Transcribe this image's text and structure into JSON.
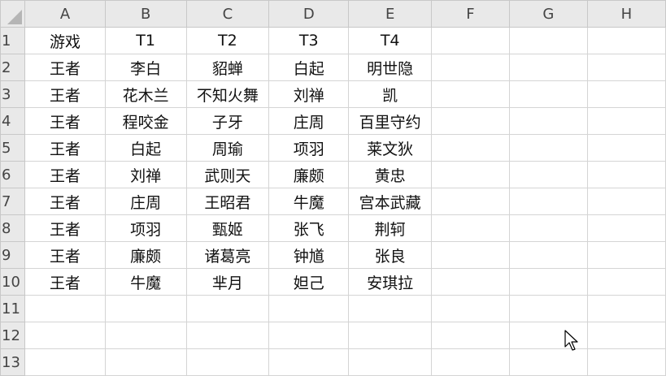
{
  "columns": [
    "A",
    "B",
    "C",
    "D",
    "E",
    "F",
    "G",
    "H"
  ],
  "row_numbers": [
    "1",
    "2",
    "3",
    "4",
    "5",
    "6",
    "7",
    "8",
    "9",
    "10",
    "11",
    "12",
    "13"
  ],
  "rows": [
    [
      "游戏",
      "T1",
      "T2",
      "T3",
      "T4"
    ],
    [
      "王者",
      "李白",
      "貂蝉",
      "白起",
      "明世隐"
    ],
    [
      "王者",
      "花木兰",
      "不知火舞",
      "刘禅",
      "凯"
    ],
    [
      "王者",
      "程咬金",
      "子牙",
      "庄周",
      "百里守约"
    ],
    [
      "王者",
      "白起",
      "周瑜",
      "项羽",
      "莱文狄"
    ],
    [
      "王者",
      "刘禅",
      "武则天",
      "廉颇",
      "黄忠"
    ],
    [
      "王者",
      "庄周",
      "王昭君",
      "牛魔",
      "宫本武藏"
    ],
    [
      "王者",
      "项羽",
      "甄姬",
      "张飞",
      "荆轲"
    ],
    [
      "王者",
      "廉颇",
      "诸葛亮",
      "钟馗",
      "张良"
    ],
    [
      "王者",
      "牛魔",
      "芈月",
      "妲己",
      "安琪拉"
    ],
    [
      "",
      "",
      "",
      "",
      ""
    ],
    [
      "",
      "",
      "",
      "",
      ""
    ],
    [
      "",
      "",
      "",
      "",
      ""
    ]
  ],
  "cursor_icon": "mouse-pointer-icon"
}
